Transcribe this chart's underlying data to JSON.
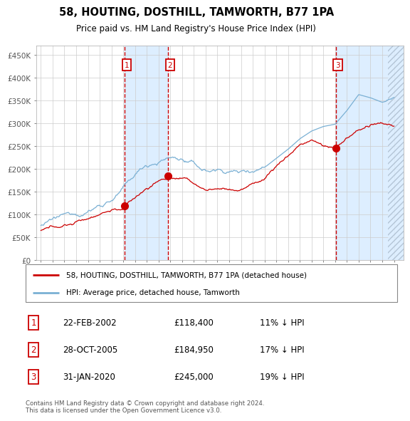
{
  "title": "58, HOUTING, DOSTHILL, TAMWORTH, B77 1PA",
  "subtitle": "Price paid vs. HM Land Registry's House Price Index (HPI)",
  "ylabel_ticks": [
    "£0",
    "£50K",
    "£100K",
    "£150K",
    "£200K",
    "£250K",
    "£300K",
    "£350K",
    "£400K",
    "£450K"
  ],
  "ytick_values": [
    0,
    50000,
    100000,
    150000,
    200000,
    250000,
    300000,
    350000,
    400000,
    450000
  ],
  "ylim": [
    0,
    470000
  ],
  "xlim_start": 1994.6,
  "xlim_end": 2025.8,
  "sale_dates": [
    2002.14,
    2005.83,
    2020.08
  ],
  "sale_prices": [
    118400,
    184950,
    245000
  ],
  "sale_labels": [
    "1",
    "2",
    "3"
  ],
  "sale_pct": [
    "11%",
    "17%",
    "19%"
  ],
  "sale_date_str": [
    "22-FEB-2002",
    "28-OCT-2005",
    "31-JAN-2020"
  ],
  "sale_price_str": [
    "£118,400",
    "£184,950",
    "£245,000"
  ],
  "red_line_color": "#cc0000",
  "blue_line_color": "#7ab0d4",
  "vline_color": "#cc0000",
  "shade_color": "#ddeeff",
  "marker_color": "#cc0000",
  "grid_color": "#cccccc",
  "background_color": "#ffffff",
  "legend_label_red": "58, HOUTING, DOSTHILL, TAMWORTH, B77 1PA (detached house)",
  "legend_label_blue": "HPI: Average price, detached house, Tamworth",
  "footer_text": "Contains HM Land Registry data © Crown copyright and database right 2024.\nThis data is licensed under the Open Government Licence v3.0.",
  "box_label_color": "#cc0000",
  "years_start": 1995,
  "years_end": 2025,
  "hpi_knots_x": [
    1995,
    1996,
    1997,
    1998,
    1999,
    2000,
    2001,
    2002,
    2003,
    2004,
    2005,
    2006,
    2007,
    2008,
    2009,
    2010,
    2011,
    2012,
    2013,
    2014,
    2015,
    2016,
    2017,
    2018,
    2019,
    2020,
    2021,
    2022,
    2023,
    2024,
    2025
  ],
  "hpi_knots_y": [
    76000,
    82000,
    90000,
    98000,
    108000,
    122000,
    138000,
    158000,
    185000,
    208000,
    220000,
    228000,
    225000,
    210000,
    195000,
    198000,
    198000,
    196000,
    204000,
    215000,
    235000,
    255000,
    278000,
    295000,
    305000,
    310000,
    340000,
    375000,
    368000,
    358000,
    365000
  ],
  "red_knots_x": [
    1995,
    1996,
    1997,
    1998,
    1999,
    2000,
    2001,
    2002,
    2003,
    2004,
    2005,
    2006,
    2007,
    2008,
    2009,
    2010,
    2011,
    2012,
    2013,
    2014,
    2015,
    2016,
    2017,
    2018,
    2019,
    2020,
    2021,
    2022,
    2023,
    2024,
    2025
  ],
  "red_knots_y": [
    65000,
    70000,
    76000,
    83000,
    92000,
    105000,
    115000,
    118000,
    140000,
    160000,
    178000,
    185000,
    183000,
    168000,
    155000,
    158000,
    158000,
    157000,
    168000,
    182000,
    210000,
    232000,
    258000,
    268000,
    255000,
    248000,
    272000,
    288000,
    298000,
    296000,
    292000
  ]
}
